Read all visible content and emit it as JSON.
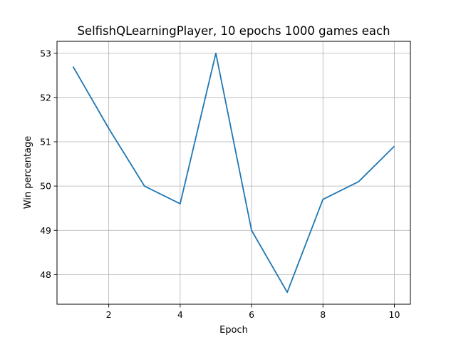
{
  "chart_data": {
    "type": "line",
    "title": "SelfishQLearningPlayer, 10 epochs 1000 games each",
    "xlabel": "Epoch",
    "ylabel": "Win percentage",
    "x": [
      1,
      2,
      3,
      4,
      5,
      6,
      7,
      8,
      9,
      10
    ],
    "series": [
      {
        "values": [
          52.7,
          51.3,
          50.0,
          49.6,
          53.0,
          49.0,
          47.6,
          49.7,
          50.1,
          50.9
        ],
        "color": "#1f77b4"
      }
    ],
    "xlim": [
      0.55,
      10.45
    ],
    "ylim": [
      47.33,
      53.27
    ],
    "xticks": [
      2,
      4,
      6,
      8,
      10
    ],
    "xtick_labels": [
      "2",
      "4",
      "6",
      "8",
      "10"
    ],
    "yticks": [
      48,
      49,
      50,
      51,
      52,
      53
    ],
    "ytick_labels": [
      "48",
      "49",
      "50",
      "51",
      "52",
      "53"
    ],
    "grid": true,
    "grid_color": "#b0b0b0"
  }
}
